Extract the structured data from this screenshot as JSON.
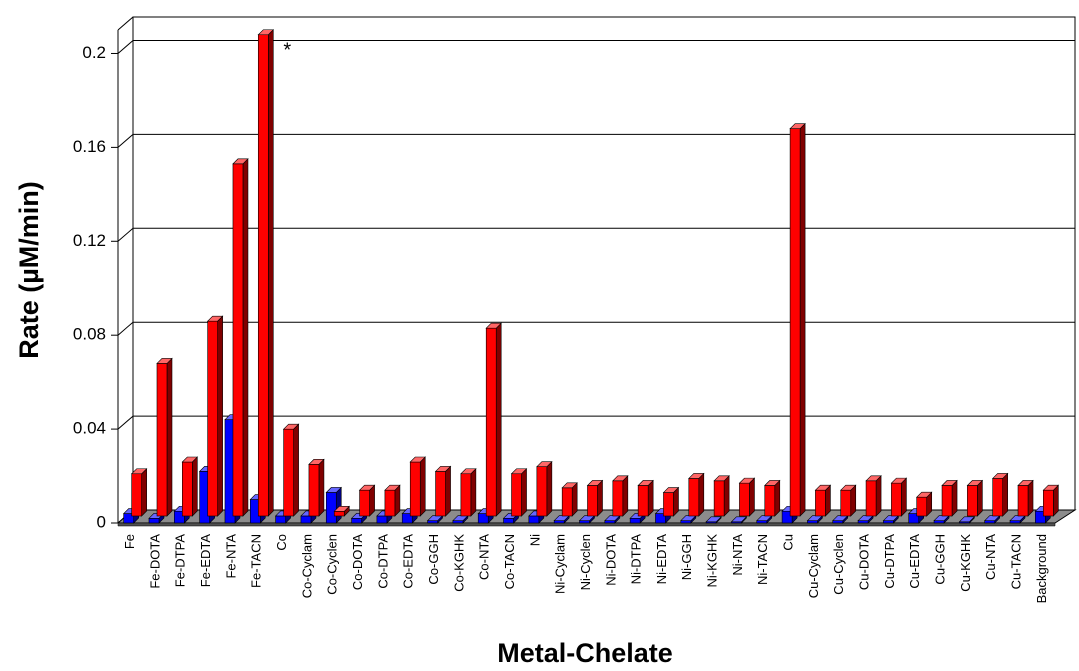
{
  "chart_data": {
    "type": "bar3d",
    "y_label": "Rate (µM/min)",
    "x_label": "Metal-Chelate",
    "annotation": {
      "text": "*",
      "category": "Fe-TACN"
    },
    "categories": [
      "Fe",
      "Fe-DOTA",
      "Fe-DTPA",
      "Fe-EDTA",
      "Fe-NTA",
      "Fe-TACN",
      "Co",
      "Co-Cyclam",
      "Co-Cyclen",
      "Co-DOTA",
      "Co-DTPA",
      "Co-EDTA",
      "Co-GGH",
      "Co-KGHK",
      "Co-NTA",
      "Co-TACN",
      "Ni",
      "Ni-Cyclam",
      "Ni-Cyclen",
      "Ni-DOTA",
      "Ni-DTPA",
      "Ni-EDTA",
      "Ni-GGH",
      "Ni-KGHK",
      "Ni-NTA",
      "Ni-TACN",
      "Cu",
      "Cu-Cyclam",
      "Cu-Cyclen",
      "Cu-DOTA",
      "Cu-DTPA",
      "Cu-EDTA",
      "Cu-GGH",
      "Cu-KGHK",
      "Cu-NTA",
      "Cu-TACN",
      "Background"
    ],
    "series": [
      {
        "color": "#ff0000",
        "values": [
          0.018,
          0.065,
          0.023,
          0.083,
          0.15,
          0.205,
          0.037,
          0.022,
          0.002,
          0.011,
          0.011,
          0.023,
          0.019,
          0.018,
          0.08,
          0.018,
          0.021,
          0.012,
          0.013,
          0.015,
          0.013,
          0.01,
          0.016,
          0.015,
          0.014,
          0.013,
          0.165,
          0.011,
          0.011,
          0.015,
          0.014,
          0.008,
          0.013,
          0.013,
          0.016,
          0.013,
          0.011
        ]
      },
      {
        "color": "#0000ff",
        "values": [
          0.004,
          0.002,
          0.005,
          0.022,
          0.044,
          0.01,
          0.003,
          0.003,
          0.013,
          0.002,
          0.003,
          0.004,
          0.001,
          0.001,
          0.004,
          0.002,
          0.003,
          0.001,
          0.001,
          0.001,
          0.002,
          0.004,
          0.001,
          0.0005,
          0.0005,
          0.001,
          0.005,
          0.001,
          0.001,
          0.001,
          0.001,
          0.004,
          0.001,
          0.0005,
          0.001,
          0.001,
          0.005
        ]
      }
    ],
    "ylim": [
      0,
      0.21
    ],
    "yticks": [
      0,
      0.04,
      0.08,
      0.12,
      0.16,
      0.2
    ],
    "grid": true
  }
}
